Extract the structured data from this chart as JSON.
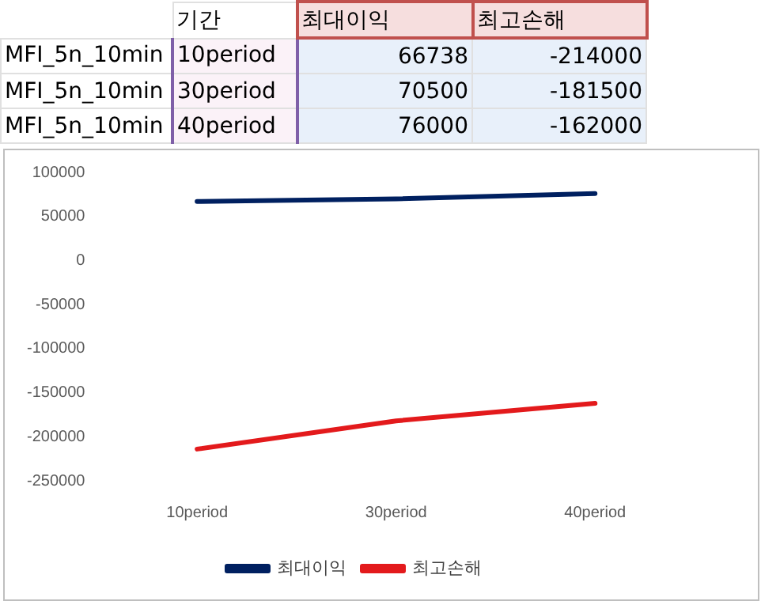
{
  "chart_data": [
    {
      "type": "other",
      "annotations": [
        "기간",
        "최대이익",
        "최고손해",
        "MFI_5n_10min",
        "10period",
        "66738",
        "-214000",
        "MFI_5n_10min",
        "30period",
        "70500",
        "-181500",
        "MFI_5n_10min",
        "40period",
        "76000",
        "-162000"
      ]
    },
    {
      "type": "line",
      "categories": [
        "10period",
        "30period",
        "40period"
      ],
      "series": [
        {
          "name": "최대이익",
          "color": "#002060",
          "values": [
            67000,
            70000,
            76000
          ]
        },
        {
          "name": "최고손해",
          "color": "#e31a1c",
          "values": [
            -214000,
            -182000,
            -162000
          ]
        }
      ],
      "ylim": [
        -250000,
        100000
      ],
      "yticks": [
        -250000,
        -200000,
        -150000,
        -100000,
        -50000,
        0,
        50000,
        100000
      ],
      "grid": false,
      "legend": "bottom",
      "marker": "none",
      "line_style": "solid"
    }
  ]
}
